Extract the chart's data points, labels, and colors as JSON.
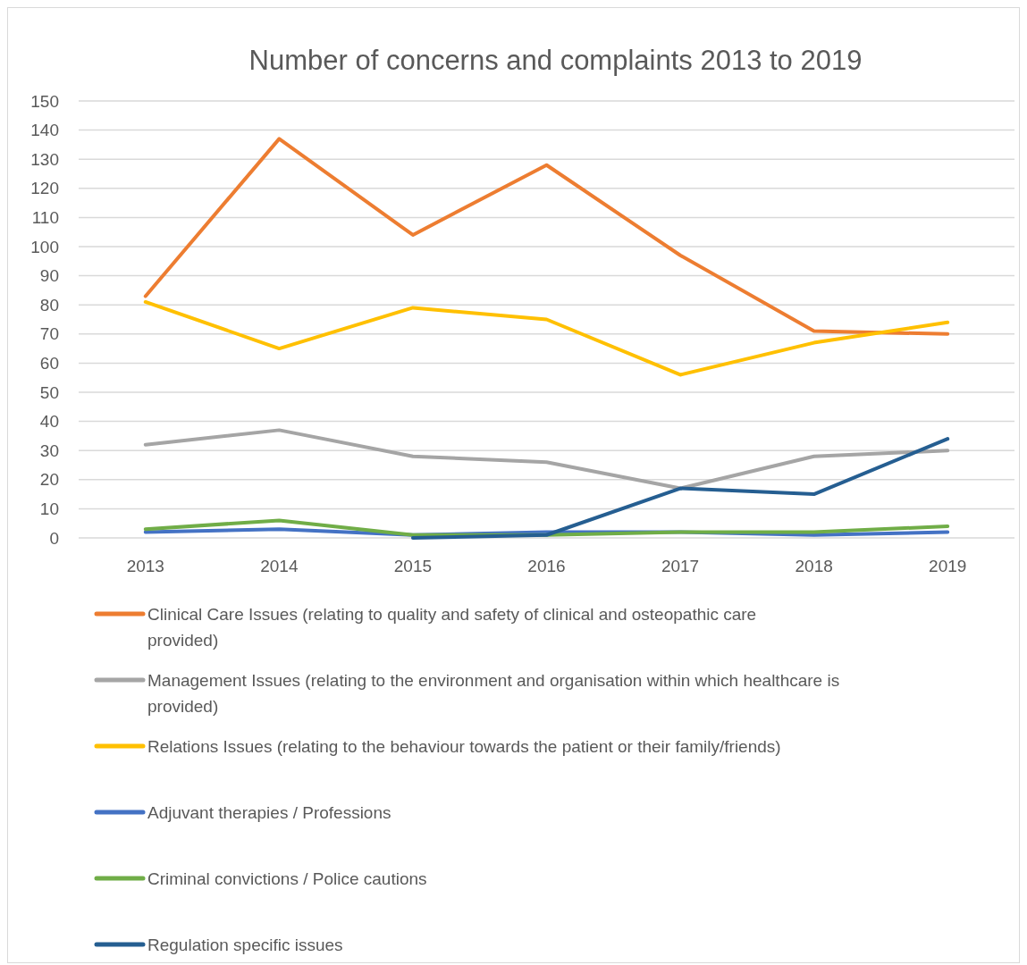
{
  "chart_data": {
    "type": "line",
    "title": "Number of concerns and complaints 2013 to 2019",
    "categories": [
      "2013",
      "2014",
      "2015",
      "2016",
      "2017",
      "2018",
      "2019"
    ],
    "series": [
      {
        "name": "Clinical Care Issues (relating to quality and safety of clinical and osteopathic care provided)",
        "color": "#ed7d31",
        "values": [
          83,
          137,
          104,
          128,
          97,
          71,
          70
        ]
      },
      {
        "name": "Management Issues (relating to the environment and organisation within which healthcare is provided)",
        "color": "#a5a5a5",
        "values": [
          32,
          37,
          28,
          26,
          17,
          28,
          30
        ]
      },
      {
        "name": "Relations Issues (relating to the behaviour towards the patient or their family/friends)",
        "color": "#ffc000",
        "values": [
          81,
          65,
          79,
          75,
          56,
          67,
          74
        ]
      },
      {
        "name": "Adjuvant therapies / Professions",
        "color": "#4472c4",
        "values": [
          2,
          3,
          1,
          2,
          2,
          1,
          2
        ]
      },
      {
        "name": "Criminal convictions / Police cautions",
        "color": "#70ad47",
        "values": [
          3,
          6,
          1,
          1,
          2,
          2,
          4
        ]
      },
      {
        "name": "Regulation specific issues",
        "color": "#255e91",
        "values": [
          null,
          null,
          0,
          1,
          17,
          15,
          34
        ]
      }
    ],
    "ylim": [
      0,
      150
    ],
    "yticks": [
      0,
      10,
      20,
      30,
      40,
      50,
      60,
      70,
      80,
      90,
      100,
      110,
      120,
      130,
      140,
      150
    ],
    "grid": "y",
    "legend": "bottom",
    "marker": "none",
    "line_style": "solid"
  }
}
